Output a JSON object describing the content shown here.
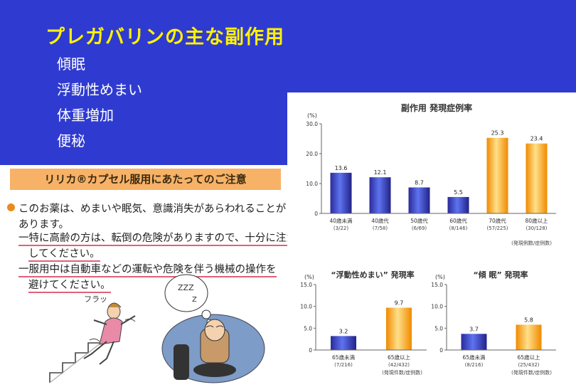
{
  "slide": {
    "title": "プレガバリンの主な副作用",
    "bullets": [
      "傾眠",
      "浮動性めまい",
      "体重増加",
      "便秘"
    ],
    "colors": {
      "background": "#2f3bd0",
      "title": "#fff200",
      "text": "#ffffff"
    }
  },
  "notice": {
    "header": "リリカ®カプセル服用にあたってのご注意",
    "lines": [
      "このお薬は、めまいや眠気、意識消失があらわれることが",
      "あります。",
      "一特に高齢の方は、転倒の危険がありますので、十分に注意",
      "してください。",
      "一服用中は自動車などの運転や危険を伴う機械の操作を",
      "避けてください。"
    ],
    "illustration_text": [
      "フラッ",
      "ZZZ",
      "Z"
    ]
  },
  "chart_data": [
    {
      "type": "bar",
      "title": "副作用 発現症例率",
      "ylabel": "(%)",
      "ylim": [
        0,
        30
      ],
      "yticks": [
        "0",
        "10.0",
        "20.0",
        "30.0"
      ],
      "categories": [
        "40歳未満",
        "40歳代",
        "50歳代",
        "60歳代",
        "70歳代",
        "80歳以上"
      ],
      "sublabels": [
        "(3/22)",
        "(7/58)",
        "(6/69)",
        "(8/146)",
        "(57/225)",
        "(30/128)"
      ],
      "values": [
        13.6,
        12.1,
        8.7,
        5.5,
        25.3,
        23.4
      ],
      "value_labels": [
        "13.6",
        "12.1",
        "8.7",
        "5.5",
        "25.3",
        "23.4"
      ],
      "colors": [
        "blue",
        "blue",
        "blue",
        "blue",
        "orange",
        "orange"
      ],
      "footnote": "(発現例数/症例数)"
    },
    {
      "type": "bar",
      "title": "“浮動性めまい” 発現率",
      "ylabel": "(%)",
      "ylim": [
        0,
        15
      ],
      "yticks": [
        "0",
        "5.0",
        "10.0",
        "15.0"
      ],
      "categories": [
        "65歳未満",
        "65歳以上"
      ],
      "sublabels": [
        "(7/216)",
        "(42/432)"
      ],
      "values": [
        3.2,
        9.7
      ],
      "value_labels": [
        "3.2",
        "9.7"
      ],
      "colors": [
        "blue",
        "orange"
      ],
      "footnote": "(発現件数/症例数)"
    },
    {
      "type": "bar",
      "title": "“傾 眠” 発現率",
      "ylabel": "(%)",
      "ylim": [
        0,
        15
      ],
      "yticks": [
        "0",
        "5.0",
        "10.0",
        "15.0"
      ],
      "categories": [
        "65歳未満",
        "65歳以上"
      ],
      "sublabels": [
        "(8/216)",
        "(25/432)"
      ],
      "values": [
        3.7,
        5.8
      ],
      "value_labels": [
        "3.7",
        "5.8"
      ],
      "colors": [
        "blue",
        "orange"
      ],
      "footnote": "(発現件数/症例数)"
    }
  ]
}
